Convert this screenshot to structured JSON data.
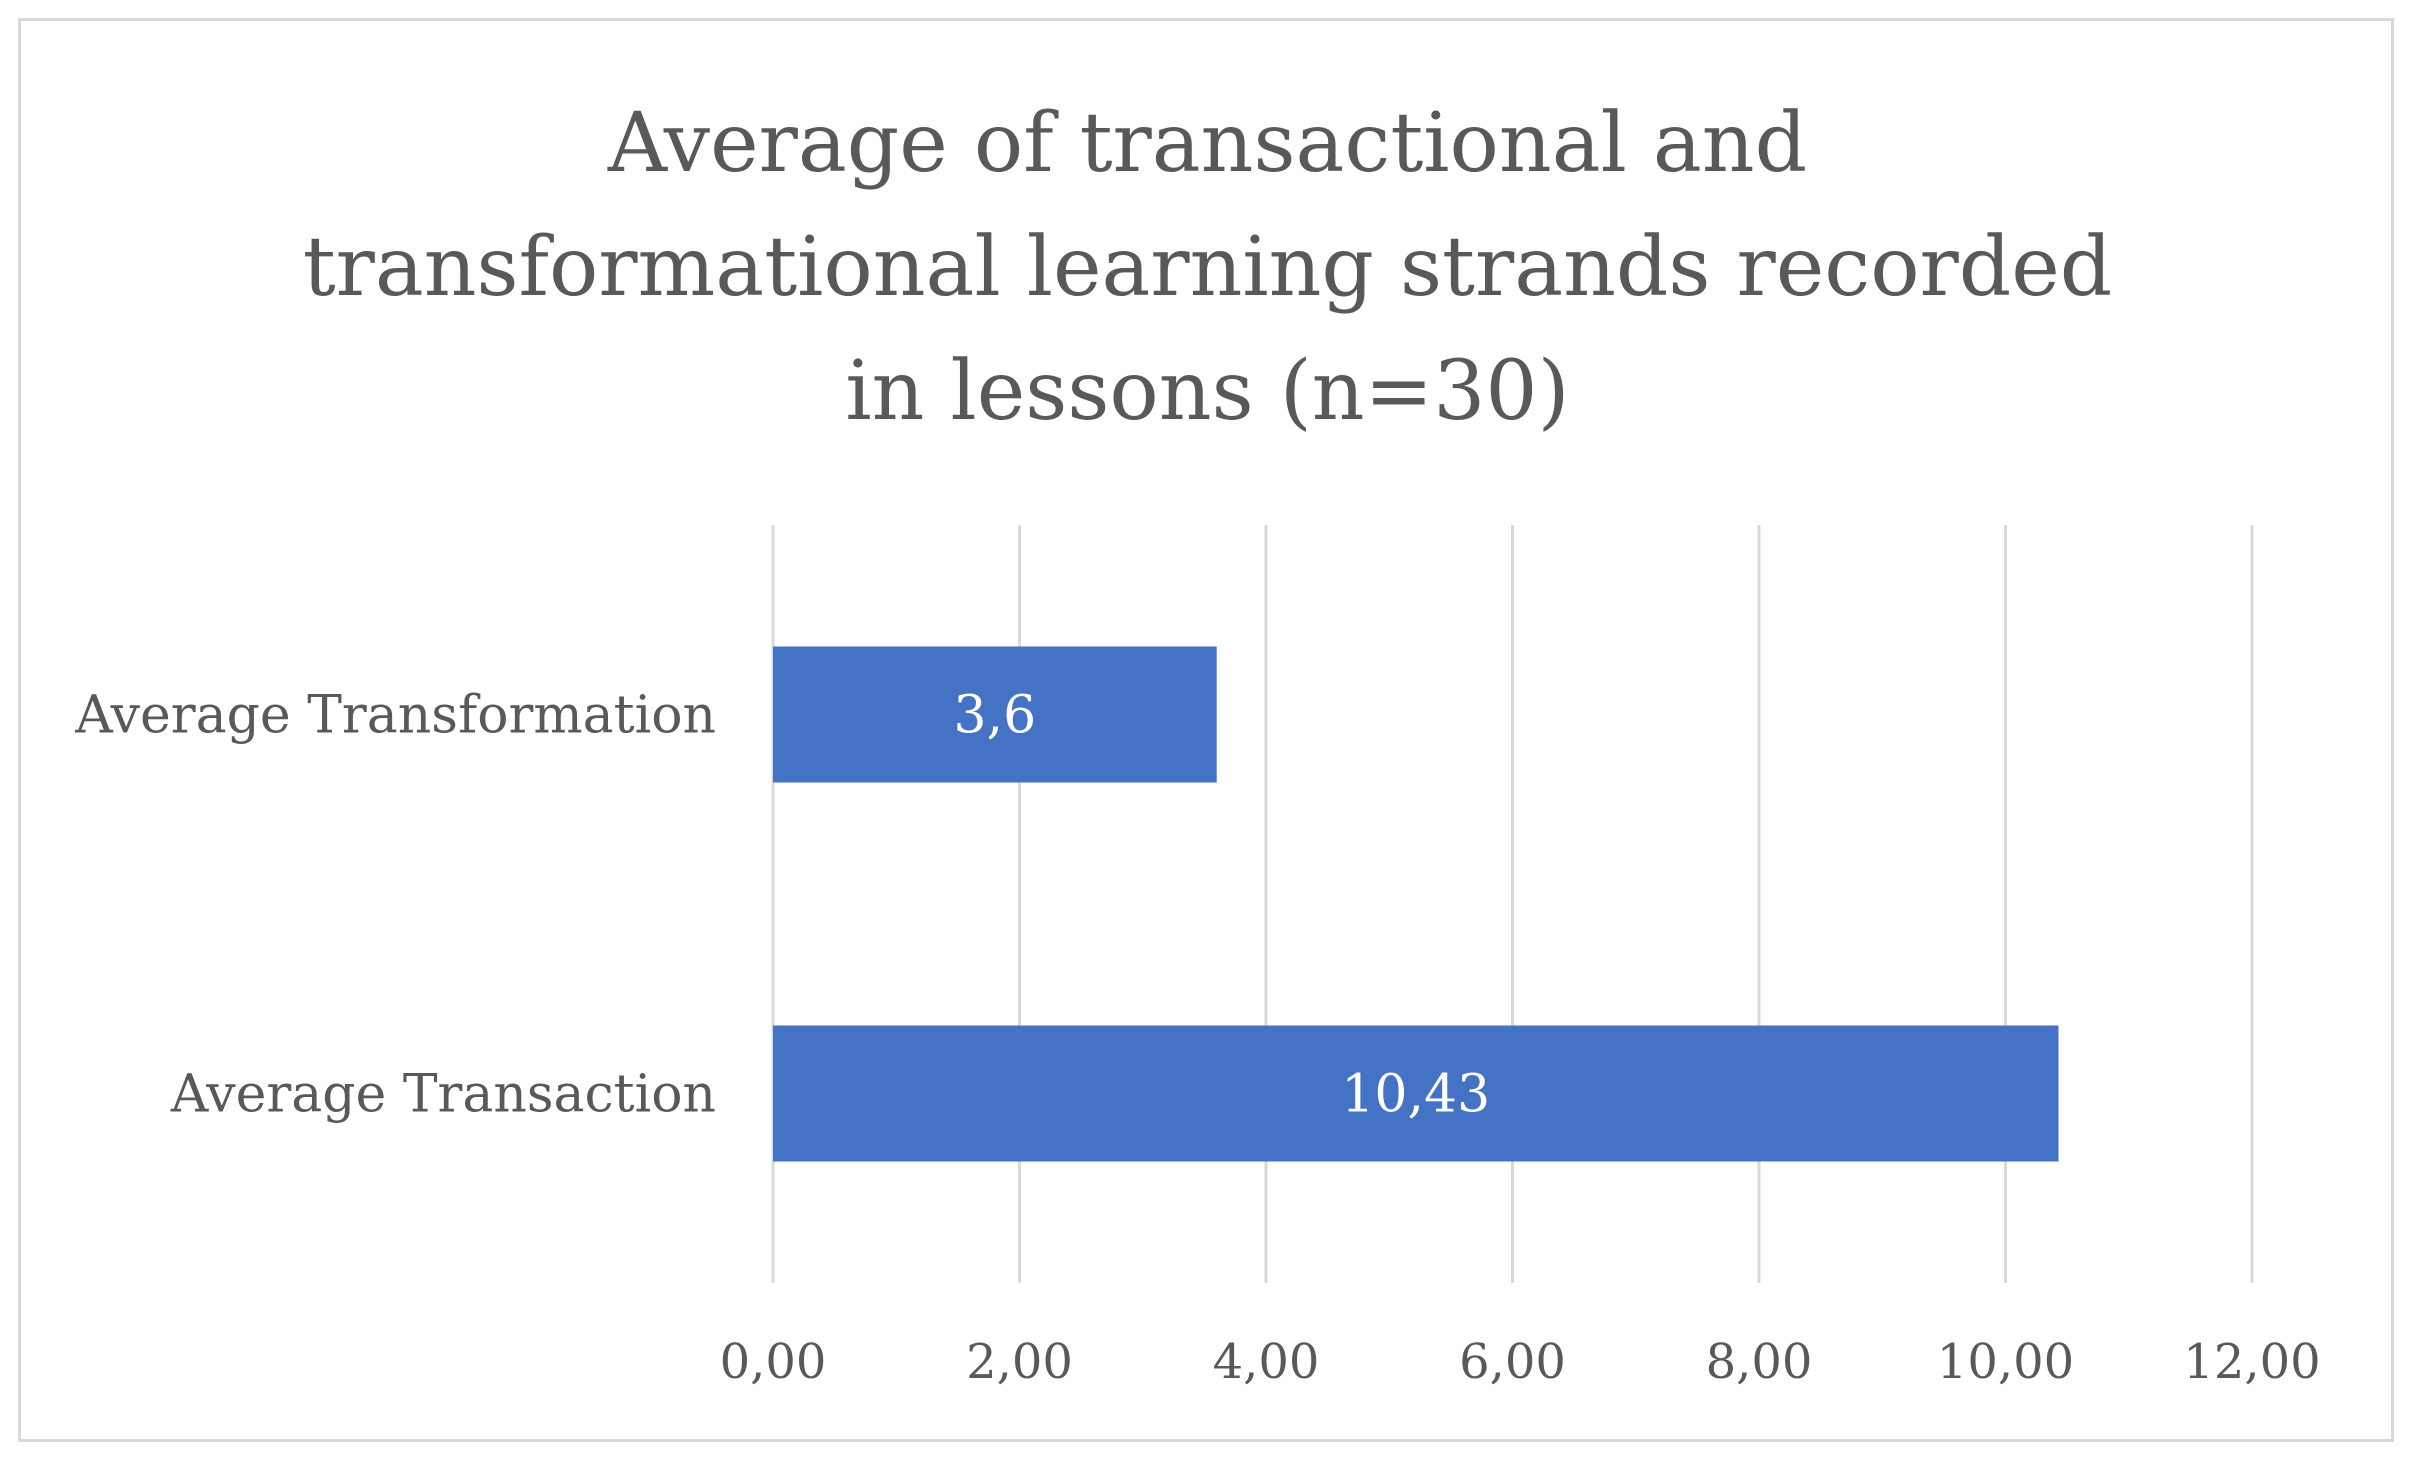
{
  "chart_data": {
    "type": "bar",
    "orientation": "horizontal",
    "title_lines": [
      "Average of transactional and",
      "transformational learning strands recorded",
      "in lessons (n=30)"
    ],
    "categories": [
      "Average Transformation",
      "Average Transaction"
    ],
    "values": [
      3.6,
      10.43
    ],
    "data_labels": [
      "3,6",
      "10,43"
    ],
    "xlim": [
      0,
      12
    ],
    "x_ticks": [
      0,
      2,
      4,
      6,
      8,
      10,
      12
    ],
    "x_tick_labels": [
      "0,00",
      "2,00",
      "4,00",
      "6,00",
      "8,00",
      "10,00",
      "12,00"
    ],
    "grid": true,
    "legend": "none",
    "bar_color": "#4472c4",
    "grid_color": "#d9d9d9",
    "text_color": "#595959"
  }
}
